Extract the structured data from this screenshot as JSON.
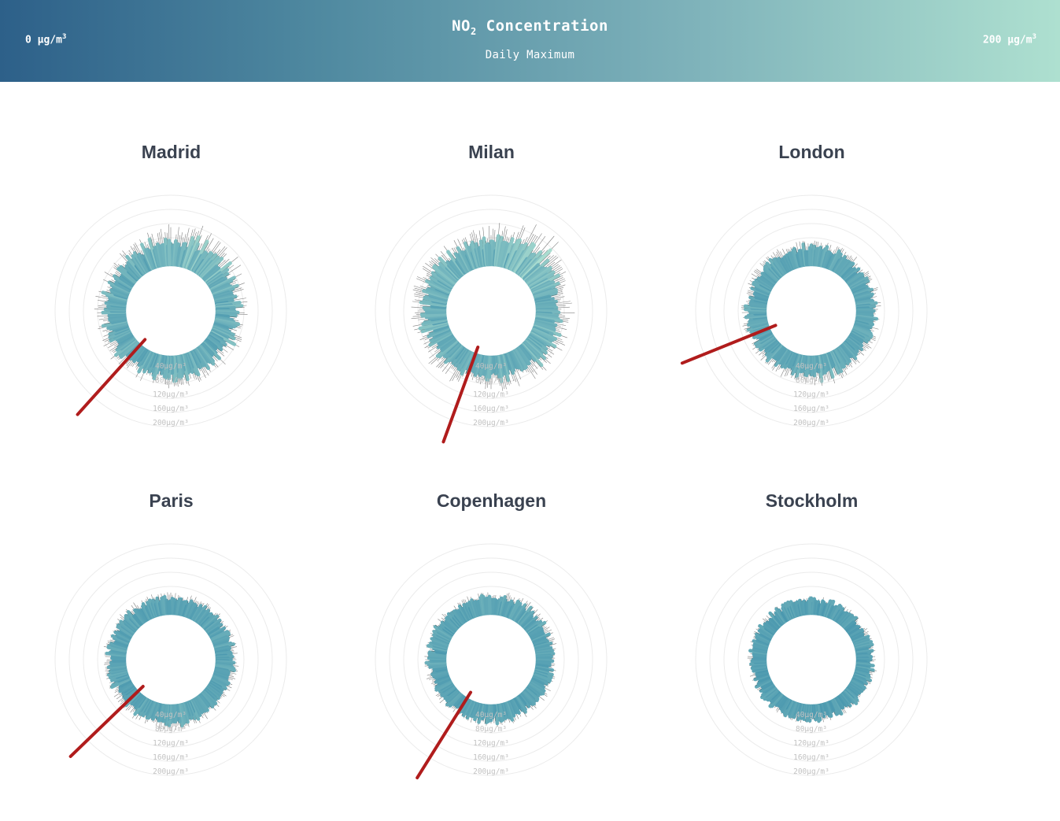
{
  "header": {
    "title_main": "NO",
    "title_sub": "2",
    "title_rest": " Concentration",
    "subtitle": "Daily Maximum",
    "legend_min": "0 µg/m",
    "legend_max": "200 µg/m",
    "legend_sup": "3",
    "color_low": "#2d6089",
    "color_high": "#aee0d0"
  },
  "chart_data": [
    {
      "type": "radial-bar",
      "title": "Madrid",
      "seed": 11,
      "base": 52,
      "spread": 40,
      "peak_angle": 25,
      "peak_boost": 60,
      "current_day_angle": 222,
      "ring_labels": [
        "40µg/m³",
        "80µg/m³",
        "120µg/m³",
        "160µg/m³",
        "200µg/m³"
      ],
      "rings": [
        40,
        80,
        120,
        160,
        200
      ]
    },
    {
      "type": "radial-bar",
      "title": "Milan",
      "seed": 23,
      "base": 60,
      "spread": 45,
      "peak_angle": 40,
      "peak_boost": 70,
      "current_day_angle": 200,
      "ring_labels": [
        "40µg/m³",
        "80µg/m³",
        "120µg/m³",
        "160µg/m³",
        "200µg/m³"
      ],
      "rings": [
        40,
        80,
        120,
        160,
        200
      ]
    },
    {
      "type": "radial-bar",
      "title": "London",
      "seed": 37,
      "base": 48,
      "spread": 25,
      "peak_angle": 170,
      "peak_boost": 20,
      "current_day_angle": 248,
      "ring_labels": [
        "40µg/m³",
        "80µg/m³",
        "120µg/m³",
        "160µg/m³",
        "200µg/m³"
      ],
      "rings": [
        40,
        80,
        120,
        160,
        200
      ]
    },
    {
      "type": "radial-bar",
      "title": "Paris",
      "seed": 41,
      "base": 44,
      "spread": 22,
      "peak_angle": 180,
      "peak_boost": 15,
      "current_day_angle": 226,
      "ring_labels": [
        "40µg/m³",
        "80µg/m³",
        "120µg/m³",
        "160µg/m³",
        "200µg/m³"
      ],
      "rings": [
        40,
        80,
        120,
        160,
        200
      ]
    },
    {
      "type": "radial-bar",
      "title": "Copenhagen",
      "seed": 53,
      "base": 42,
      "spread": 22,
      "peak_angle": 20,
      "peak_boost": 12,
      "current_day_angle": 212,
      "ring_labels": [
        "40µg/m³",
        "80µg/m³",
        "120µg/m³",
        "160µg/m³",
        "200µg/m³"
      ],
      "rings": [
        40,
        80,
        120,
        160,
        200
      ]
    },
    {
      "type": "radial-bar",
      "title": "Stockholm",
      "seed": 67,
      "base": 36,
      "spread": 18,
      "peak_angle": 90,
      "peak_boost": 10,
      "current_day_angle": -1,
      "ring_labels": [
        "40µg/m³",
        "80µg/m³",
        "120µg/m³",
        "160µg/m³",
        "200µg/m³"
      ],
      "rings": [
        40,
        80,
        120,
        160,
        200
      ]
    }
  ]
}
